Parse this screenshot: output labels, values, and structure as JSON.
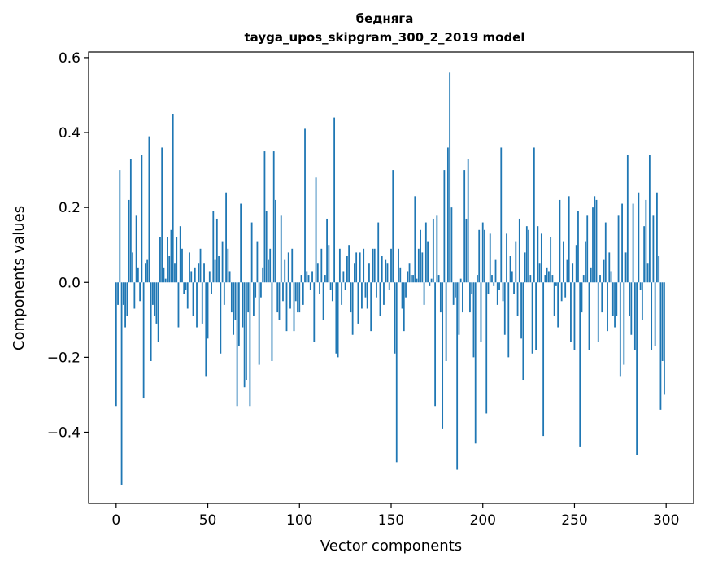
{
  "chart_data": {
    "type": "bar",
    "title": "бедняга",
    "subtitle": "tayga_upos_skipgram_300_2_2019 model",
    "xlabel": "Vector components",
    "ylabel": "Components values",
    "xlim": [
      -15,
      315
    ],
    "ylim": [
      -0.59,
      0.615
    ],
    "xticks": [
      0,
      50,
      100,
      150,
      200,
      250,
      300
    ],
    "xtick_labels": [
      "0",
      "50",
      "100",
      "150",
      "200",
      "250",
      "300"
    ],
    "yticks": [
      -0.4,
      -0.2,
      0.0,
      0.2,
      0.4,
      0.6
    ],
    "ytick_labels": [
      "−0.4",
      "−0.2",
      "0.0",
      "0.2",
      "0.4",
      "0.6"
    ],
    "bar_color": "#1f77b4",
    "grid": false,
    "legend": "none",
    "series": [
      {
        "values": [
          -0.33,
          -0.06,
          0.3,
          -0.54,
          -0.06,
          -0.12,
          -0.09,
          0.22,
          0.33,
          0.08,
          -0.07,
          0.18,
          0.04,
          -0.05,
          0.34,
          -0.31,
          0.05,
          0.06,
          0.39,
          -0.21,
          -0.06,
          -0.09,
          -0.11,
          -0.16,
          0.12,
          0.36,
          0.04,
          0.01,
          0.12,
          0.07,
          0.14,
          0.45,
          0.05,
          0.12,
          -0.12,
          0.15,
          0.09,
          -0.03,
          -0.02,
          -0.07,
          0.08,
          0.03,
          -0.09,
          0.04,
          -0.12,
          0.05,
          0.09,
          -0.11,
          0.05,
          -0.25,
          -0.15,
          0.03,
          -0.03,
          0.19,
          0.06,
          0.17,
          0.07,
          -0.19,
          0.11,
          -0.06,
          0.24,
          0.09,
          0.03,
          -0.08,
          -0.14,
          -0.1,
          -0.33,
          -0.17,
          0.21,
          -0.12,
          -0.28,
          -0.26,
          -0.08,
          -0.33,
          0.16,
          -0.09,
          -0.04,
          0.11,
          -0.22,
          -0.04,
          0.04,
          0.35,
          0.19,
          0.06,
          0.09,
          -0.21,
          0.35,
          0.22,
          -0.08,
          -0.1,
          0.18,
          -0.05,
          0.06,
          -0.13,
          0.08,
          -0.07,
          0.09,
          -0.13,
          -0.05,
          -0.08,
          -0.08,
          0.02,
          -0.06,
          0.41,
          0.03,
          0.02,
          -0.02,
          0.03,
          -0.16,
          0.28,
          0.05,
          -0.03,
          0.09,
          -0.1,
          0.02,
          0.17,
          0.1,
          -0.02,
          -0.05,
          0.44,
          -0.19,
          -0.2,
          0.09,
          -0.06,
          0.03,
          -0.02,
          0.07,
          0.1,
          -0.08,
          -0.14,
          0.05,
          0.08,
          -0.11,
          0.08,
          -0.07,
          0.09,
          -0.04,
          -0.07,
          0.05,
          -0.13,
          0.09,
          0.09,
          -0.04,
          0.16,
          -0.09,
          0.07,
          -0.06,
          0.06,
          0.05,
          -0.02,
          0.09,
          0.3,
          -0.19,
          -0.48,
          0.09,
          0.04,
          -0.07,
          -0.13,
          -0.04,
          0.03,
          0.05,
          0.02,
          0.02,
          0.23,
          0.01,
          0.09,
          0.14,
          0.08,
          -0.06,
          0.16,
          0.11,
          -0.01,
          0.01,
          0.17,
          -0.33,
          0.18,
          0.02,
          -0.08,
          -0.39,
          0.3,
          -0.21,
          0.36,
          0.56,
          0.2,
          -0.06,
          -0.04,
          -0.5,
          -0.14,
          0.01,
          -0.08,
          0.3,
          0.17,
          0.33,
          -0.08,
          -0.03,
          -0.2,
          -0.43,
          0.02,
          0.14,
          -0.16,
          0.16,
          0.14,
          -0.35,
          -0.03,
          0.13,
          0.02,
          -0.01,
          0.06,
          -0.06,
          -0.02,
          0.36,
          -0.05,
          -0.14,
          0.13,
          -0.2,
          0.07,
          0.03,
          -0.03,
          0.11,
          -0.09,
          0.17,
          -0.15,
          -0.26,
          0.08,
          0.15,
          0.14,
          0.02,
          -0.19,
          0.36,
          -0.18,
          0.15,
          0.05,
          0.13,
          -0.41,
          0.02,
          0.04,
          0.03,
          0.12,
          0.02,
          -0.09,
          -0.01,
          -0.12,
          0.22,
          -0.05,
          0.11,
          -0.04,
          0.06,
          0.23,
          -0.16,
          0.05,
          -0.18,
          0.1,
          0.19,
          -0.44,
          -0.08,
          0.02,
          0.11,
          0.18,
          -0.18,
          0.04,
          0.2,
          0.23,
          0.22,
          -0.16,
          0.02,
          -0.08,
          0.06,
          0.16,
          -0.13,
          0.08,
          0.03,
          -0.09,
          -0.12,
          -0.09,
          0.18,
          -0.25,
          0.21,
          -0.22,
          0.08,
          0.34,
          -0.09,
          -0.14,
          0.21,
          -0.18,
          -0.46,
          0.24,
          -0.02,
          -0.1,
          0.15,
          0.22,
          0.05,
          0.34,
          -0.18,
          0.18,
          -0.17,
          0.24,
          0.07,
          -0.34,
          -0.21,
          -0.3
        ]
      }
    ]
  }
}
